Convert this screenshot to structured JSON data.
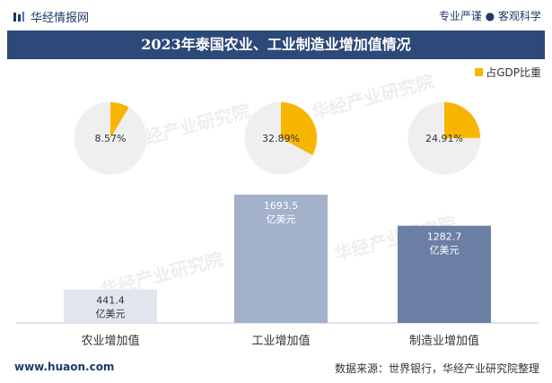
{
  "header": {
    "brand": "华经情报网",
    "slogan": "专业严谨 ● 客观科学"
  },
  "watermark": "华经产业研究院",
  "colors": {
    "title_bg": "#2d4979",
    "pie_share": "#f8b500",
    "pie_rest": "#efefef",
    "bars": [
      "#e1e6ee",
      "#a3b1cb",
      "#6a7fa3"
    ]
  },
  "chart_data": {
    "type": "bar",
    "title": "2023年泰国农业、工业制造业增加值情况",
    "categories": [
      "农业增加值",
      "工业增加值",
      "制造业增加值"
    ],
    "values": [
      441.4,
      1693.5,
      1282.7
    ],
    "value_unit": "亿美元",
    "value_labels": [
      "441.4",
      "1693.5",
      "1282.7"
    ],
    "pie_series": {
      "name": "占GDP比重",
      "values": [
        8.57,
        32.89,
        24.91
      ],
      "labels": [
        "8.57%",
        "32.89%",
        "24.91%"
      ]
    }
  },
  "footer": {
    "site": "www.huaon.com",
    "source": "数据来源：世界银行，华经产业研究院整理"
  }
}
